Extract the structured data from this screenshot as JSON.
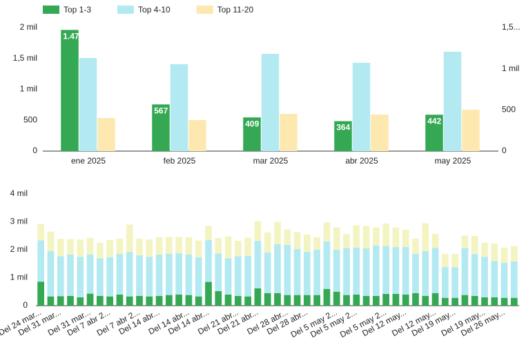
{
  "chart_data": [
    {
      "type": "bar",
      "categories": [
        "ene 2025",
        "feb 2025",
        "mar 2025",
        "abr 2025",
        "may 2025"
      ],
      "series": [
        {
          "name": "Top 1-3",
          "color": "#34a853",
          "axis": "y2",
          "values": [
            1472,
            567,
            409,
            364,
            442
          ],
          "value_labels": [
            "1.472",
            "567",
            "409",
            "364",
            "442"
          ]
        },
        {
          "name": "Top 4-10",
          "color": "#b3eaf2",
          "values": [
            1508,
            1408,
            1575,
            1430,
            1609
          ]
        },
        {
          "name": "Top 11-20",
          "color": "#fde9b0",
          "values": [
            536,
            503,
            603,
            592,
            670
          ]
        }
      ],
      "ylim": [
        0,
        2000
      ],
      "yticks": [
        0,
        500,
        {
          "value": 1000,
          "label": "1 mil"
        },
        {
          "value": 1500,
          "label": "1,5 mil"
        },
        {
          "value": 2000,
          "label": "2 mil"
        }
      ],
      "y2lim": [
        0,
        1500
      ],
      "y2ticks": [
        0,
        500,
        {
          "value": 1000,
          "label": "1 mil"
        },
        {
          "value": 1500,
          "label": "1,5..."
        }
      ],
      "grid": false
    },
    {
      "type": "stacked_bar",
      "categories": [
        "Del 24 mar...",
        null,
        "Del 31 mar...",
        null,
        null,
        "Del 31 mar...",
        null,
        "Del 7 abr 2...",
        null,
        null,
        "Del 7 abr 2...",
        null,
        "Del 14 abr...",
        null,
        null,
        "Del 14 abr...",
        null,
        "Del 14 abr...",
        null,
        null,
        "Del 21 abr...",
        null,
        "Del 21 abr...",
        null,
        null,
        "Del 28 abr...",
        null,
        "Del 28 abr...",
        null,
        null,
        "Del 5 may 2...",
        null,
        "Del 5 may 2...",
        null,
        null,
        "Del 5 may 2...",
        null,
        "Del 12 may...",
        null,
        null,
        "Del 12 may...",
        null,
        "Del 19 may...",
        null,
        null,
        "Del 19 may...",
        null,
        "Del 26 may...",
        null
      ],
      "series": [
        {
          "color": "#34a853",
          "values": [
            860,
            330,
            340,
            350,
            300,
            430,
            350,
            330,
            400,
            330,
            350,
            330,
            350,
            380,
            400,
            380,
            330,
            850,
            520,
            400,
            350,
            330,
            620,
            450,
            450,
            380,
            380,
            380,
            380,
            600,
            500,
            380,
            400,
            350,
            350,
            420,
            420,
            400,
            450,
            350,
            450,
            280,
            280,
            380,
            350,
            300,
            300,
            280,
            280
          ]
        },
        {
          "color": "#b3eaf2",
          "values": [
            1480,
            1620,
            1430,
            1480,
            1450,
            1400,
            1350,
            1400,
            1450,
            1600,
            1450,
            1420,
            1480,
            1480,
            1480,
            1450,
            1400,
            1500,
            1350,
            1300,
            1420,
            1450,
            1700,
            1450,
            1750,
            1800,
            1650,
            1550,
            1620,
            1700,
            1500,
            1680,
            1680,
            1700,
            1800,
            1720,
            1680,
            1700,
            1400,
            1600,
            1620,
            1100,
            1100,
            1680,
            1500,
            1450,
            1300,
            1250,
            1300
          ]
        },
        {
          "color": "#f3f4c2",
          "values": [
            580,
            700,
            620,
            550,
            620,
            600,
            550,
            620,
            550,
            970,
            600,
            620,
            620,
            600,
            580,
            620,
            600,
            500,
            550,
            780,
            550,
            650,
            700,
            720,
            800,
            550,
            600,
            620,
            450,
            680,
            800,
            500,
            800,
            800,
            650,
            800,
            700,
            620,
            550,
            1000,
            500,
            470,
            470,
            450,
            650,
            500,
            620,
            550,
            550
          ]
        }
      ],
      "ylim": [
        0,
        4000
      ],
      "yticks": [
        0,
        {
          "value": 1000,
          "label": "1 mil"
        },
        {
          "value": 2000,
          "label": "2 mil"
        },
        {
          "value": 3000,
          "label": "3 mil"
        },
        {
          "value": 4000,
          "label": "4 mil"
        }
      ],
      "grid": false
    }
  ]
}
